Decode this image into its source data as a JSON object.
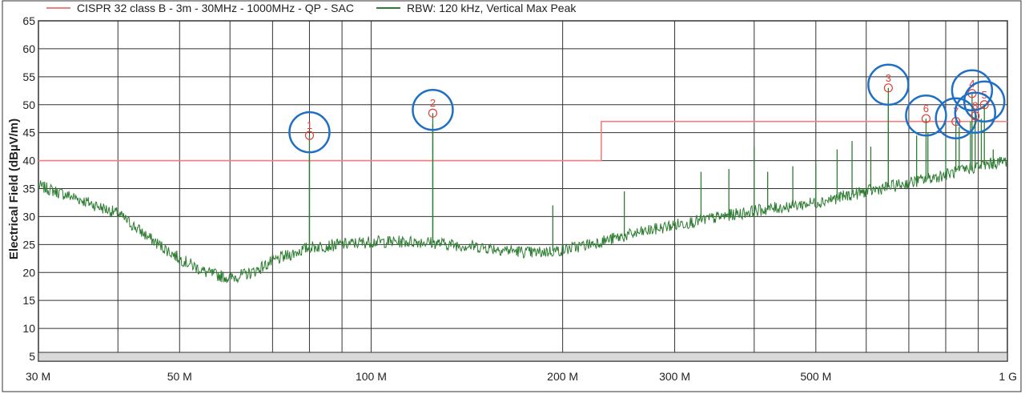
{
  "chart_data": {
    "type": "line",
    "title": "",
    "xlabel": "",
    "ylabel": "Electrical Field (dBµV/m)",
    "x_scale": "log",
    "xlim_mhz": [
      30,
      1000
    ],
    "ylim": [
      5,
      65
    ],
    "yticks": [
      5,
      10,
      15,
      20,
      25,
      30,
      35,
      40,
      45,
      50,
      55,
      60,
      65
    ],
    "xticks": [
      {
        "mhz": 30,
        "label": "30 M"
      },
      {
        "mhz": 50,
        "label": "50 M"
      },
      {
        "mhz": 100,
        "label": "100 M"
      },
      {
        "mhz": 200,
        "label": "200 M"
      },
      {
        "mhz": 300,
        "label": "300 M"
      },
      {
        "mhz": 500,
        "label": "500 M"
      },
      {
        "mhz": 1000,
        "label": "1 G"
      }
    ],
    "x_gridlines_mhz": [
      30,
      40,
      50,
      60,
      70,
      80,
      90,
      100,
      200,
      300,
      400,
      500,
      600,
      700,
      800,
      900,
      1000
    ],
    "grid": true,
    "legend_position": "top",
    "series": [
      {
        "name": "CISPR 32 class B - 3m - 30MHz - 1000MHz - QP - SAC",
        "color": "#f08080",
        "kind": "limit",
        "points": [
          [
            30,
            40
          ],
          [
            230,
            40
          ],
          [
            230,
            47
          ],
          [
            1000,
            47
          ]
        ]
      },
      {
        "name": "RBW: 120 kHz, Vertical Max Peak",
        "color": "#2e7d32",
        "kind": "trace",
        "baseline": [
          [
            30,
            35.5
          ],
          [
            35,
            33
          ],
          [
            40,
            30.5
          ],
          [
            45,
            26
          ],
          [
            50,
            22.5
          ],
          [
            55,
            20
          ],
          [
            60,
            19
          ],
          [
            65,
            20
          ],
          [
            70,
            22
          ],
          [
            80,
            24.5
          ],
          [
            90,
            25
          ],
          [
            100,
            25.5
          ],
          [
            120,
            25.5
          ],
          [
            150,
            24.5
          ],
          [
            180,
            23.5
          ],
          [
            200,
            24
          ],
          [
            250,
            26.5
          ],
          [
            300,
            28.5
          ],
          [
            400,
            31
          ],
          [
            500,
            32.5
          ],
          [
            600,
            34.5
          ],
          [
            700,
            36
          ],
          [
            800,
            37.5
          ],
          [
            900,
            39
          ],
          [
            1000,
            40
          ]
        ],
        "peaks": [
          [
            80,
            41
          ],
          [
            125,
            46.5
          ],
          [
            193,
            32
          ],
          [
            250,
            34.5
          ],
          [
            330,
            38
          ],
          [
            365,
            38.5
          ],
          [
            400,
            42.5
          ],
          [
            420,
            38
          ],
          [
            460,
            39
          ],
          [
            500,
            39.5
          ],
          [
            540,
            42
          ],
          [
            570,
            43.5
          ],
          [
            610,
            42.5
          ],
          [
            650,
            51
          ],
          [
            720,
            44.5
          ],
          [
            750,
            45
          ],
          [
            800,
            44
          ],
          [
            840,
            46
          ],
          [
            875,
            47
          ],
          [
            910,
            47.5
          ],
          [
            950,
            42
          ]
        ]
      }
    ],
    "markers": [
      {
        "label": "1",
        "mhz": 80,
        "value": 44.5
      },
      {
        "label": "2",
        "mhz": 125,
        "value": 48.5
      },
      {
        "label": "3",
        "mhz": 650,
        "value": 53
      },
      {
        "label": "4",
        "mhz": 880,
        "value": 52
      },
      {
        "label": "5",
        "mhz": 920,
        "value": 50
      },
      {
        "label": "6",
        "mhz": 745,
        "value": 47.5
      },
      {
        "label": "7",
        "mhz": 830,
        "value": 47
      },
      {
        "label": "8",
        "mhz": 890,
        "value": 48
      }
    ],
    "highlight_color": "#1f6fc4"
  }
}
